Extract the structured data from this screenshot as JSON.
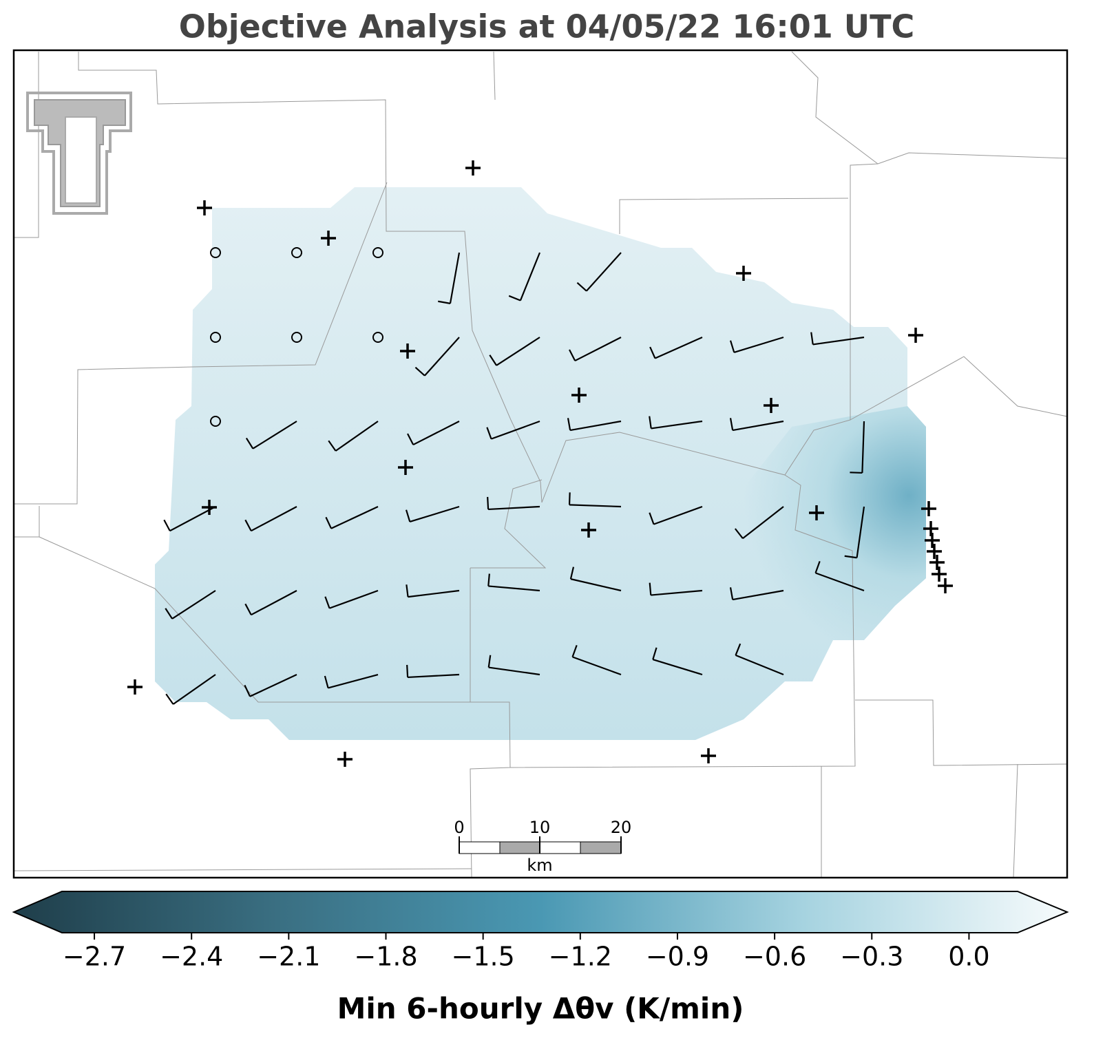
{
  "title": "Objective Analysis at 04/05/22 16:01 UTC",
  "scale_bar": {
    "labels": [
      "0",
      "10",
      "20"
    ],
    "unit": "km"
  },
  "colorbar": {
    "label": "Min 6-hourly Δθv (K/min)",
    "lim": [
      -2.8,
      0.15
    ],
    "ticks": [
      {
        "value": -2.7,
        "label": "−2.7"
      },
      {
        "value": -2.4,
        "label": "−2.4"
      },
      {
        "value": -2.1,
        "label": "−2.1"
      },
      {
        "value": -1.8,
        "label": "−1.8"
      },
      {
        "value": -1.5,
        "label": "−1.5"
      },
      {
        "value": -1.2,
        "label": "−1.2"
      },
      {
        "value": -0.9,
        "label": "−0.9"
      },
      {
        "value": -0.6,
        "label": "−0.6"
      },
      {
        "value": -0.3,
        "label": "−0.3"
      },
      {
        "value": 0,
        "label": "0.0"
      }
    ],
    "colors": [
      "#1f3e4a",
      "#3a6f82",
      "#4a98b3",
      "#a6d3e0",
      "#f7fbfc"
    ]
  }
}
